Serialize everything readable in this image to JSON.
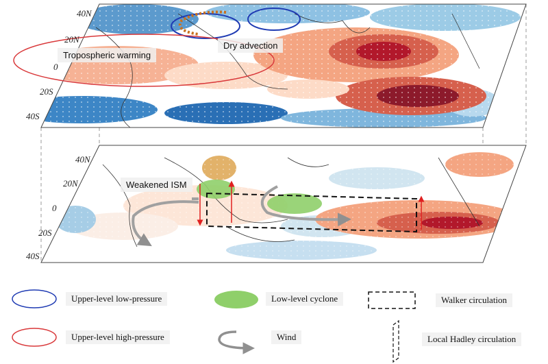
{
  "top_panel": {
    "lat_ticks": [
      "40N",
      "20N",
      "0",
      "20S",
      "40S"
    ],
    "annotations": {
      "tropospheric_warming": "Tropospheric warming",
      "dry_advection": "Dry advection"
    }
  },
  "bottom_panel": {
    "lat_ticks": [
      "40N",
      "20N",
      "0",
      "20S",
      "40S"
    ],
    "annotations": {
      "weakened_ism": "Weakened ISM"
    }
  },
  "legend": {
    "upper_low": "Upper-level  low-pressure",
    "upper_high": "Upper-level  high-pressure",
    "low_cyclone": "Low-level cyclone",
    "wind": "Wind",
    "walker": "Walker circulation",
    "hadley": "Local Hadley circulation"
  },
  "colors": {
    "upper_low": "#1f3bb3",
    "upper_high": "#d9383a",
    "low_cyclone": "#8fcf6a",
    "wind": "#909090",
    "dry_advection": "#c8711f",
    "warm_strong": "#b2182b",
    "warm_mid": "#ef8a62",
    "warm_light": "#fddbc7",
    "cool_light": "#d1e5f0",
    "cool_mid": "#67a9cf",
    "cool_strong": "#2166ac"
  }
}
